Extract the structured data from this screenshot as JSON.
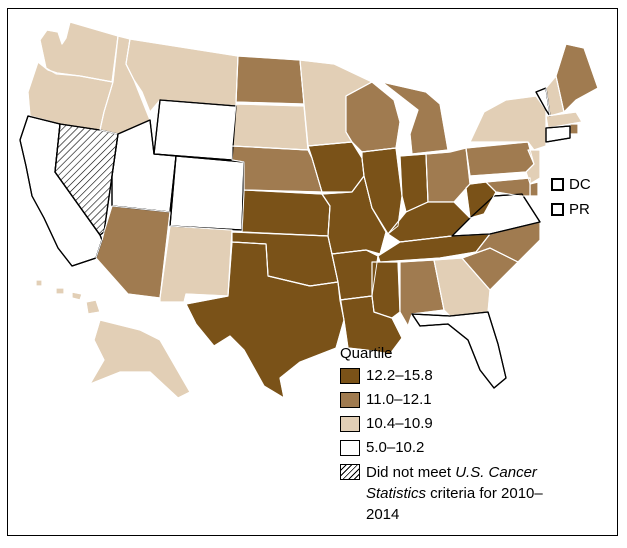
{
  "legend": {
    "title": "Quartile",
    "items": [
      {
        "label": "12.2–15.8",
        "color": "#7a5218"
      },
      {
        "label": "11.0–12.1",
        "color": "#a07b50"
      },
      {
        "label": "10.4–10.9",
        "color": "#e2cfb6"
      },
      {
        "label": "5.0–10.2",
        "color": "#ffffff"
      }
    ],
    "not_met": {
      "before": "Did not meet ",
      "italic": "U.S. Cancer Statistics",
      "after": " criteria for 2010–2014"
    }
  },
  "territories": [
    {
      "label": "DC"
    },
    {
      "label": "PR"
    }
  ],
  "colors": {
    "q1": "#7a5218",
    "q2": "#a07b50",
    "q3": "#e2cfb6",
    "q4": "#ffffff",
    "not_met": "hatched",
    "border": "#000000"
  },
  "states": [
    {
      "id": "WA",
      "q": 3
    },
    {
      "id": "OR",
      "q": 3
    },
    {
      "id": "CA",
      "q": 4
    },
    {
      "id": "NV",
      "q": "not_met"
    },
    {
      "id": "ID",
      "q": 3
    },
    {
      "id": "MT",
      "q": 3
    },
    {
      "id": "WY",
      "q": 4
    },
    {
      "id": "UT",
      "q": 4
    },
    {
      "id": "CO",
      "q": 4
    },
    {
      "id": "AZ",
      "q": 2
    },
    {
      "id": "NM",
      "q": 3
    },
    {
      "id": "ND",
      "q": 2
    },
    {
      "id": "SD",
      "q": 3
    },
    {
      "id": "NE",
      "q": 2
    },
    {
      "id": "KS",
      "q": 1
    },
    {
      "id": "OK",
      "q": 1
    },
    {
      "id": "TX",
      "q": 1
    },
    {
      "id": "MN",
      "q": 3
    },
    {
      "id": "IA",
      "q": 1
    },
    {
      "id": "MO",
      "q": 1
    },
    {
      "id": "AR",
      "q": 1
    },
    {
      "id": "LA",
      "q": 1
    },
    {
      "id": "WI",
      "q": 2
    },
    {
      "id": "IL",
      "q": 1
    },
    {
      "id": "MI",
      "q": 2
    },
    {
      "id": "IN",
      "q": 1
    },
    {
      "id": "OH",
      "q": 2
    },
    {
      "id": "KY",
      "q": 1
    },
    {
      "id": "TN",
      "q": 1
    },
    {
      "id": "MS",
      "q": 1
    },
    {
      "id": "AL",
      "q": 2
    },
    {
      "id": "GA",
      "q": 3
    },
    {
      "id": "FL",
      "q": 4
    },
    {
      "id": "SC",
      "q": 2
    },
    {
      "id": "NC",
      "q": 2
    },
    {
      "id": "VA",
      "q": 4
    },
    {
      "id": "WV",
      "q": 1
    },
    {
      "id": "PA",
      "q": 2
    },
    {
      "id": "NY",
      "q": 3
    },
    {
      "id": "VT",
      "q": 4
    },
    {
      "id": "NH",
      "q": 3
    },
    {
      "id": "ME",
      "q": 2
    },
    {
      "id": "MA",
      "q": 3
    },
    {
      "id": "RI",
      "q": 2
    },
    {
      "id": "CT",
      "q": 4
    },
    {
      "id": "NJ",
      "q": 3
    },
    {
      "id": "DE",
      "q": 2
    },
    {
      "id": "MD",
      "q": 2
    },
    {
      "id": "AK",
      "q": 3
    },
    {
      "id": "HI",
      "q": 3
    }
  ]
}
